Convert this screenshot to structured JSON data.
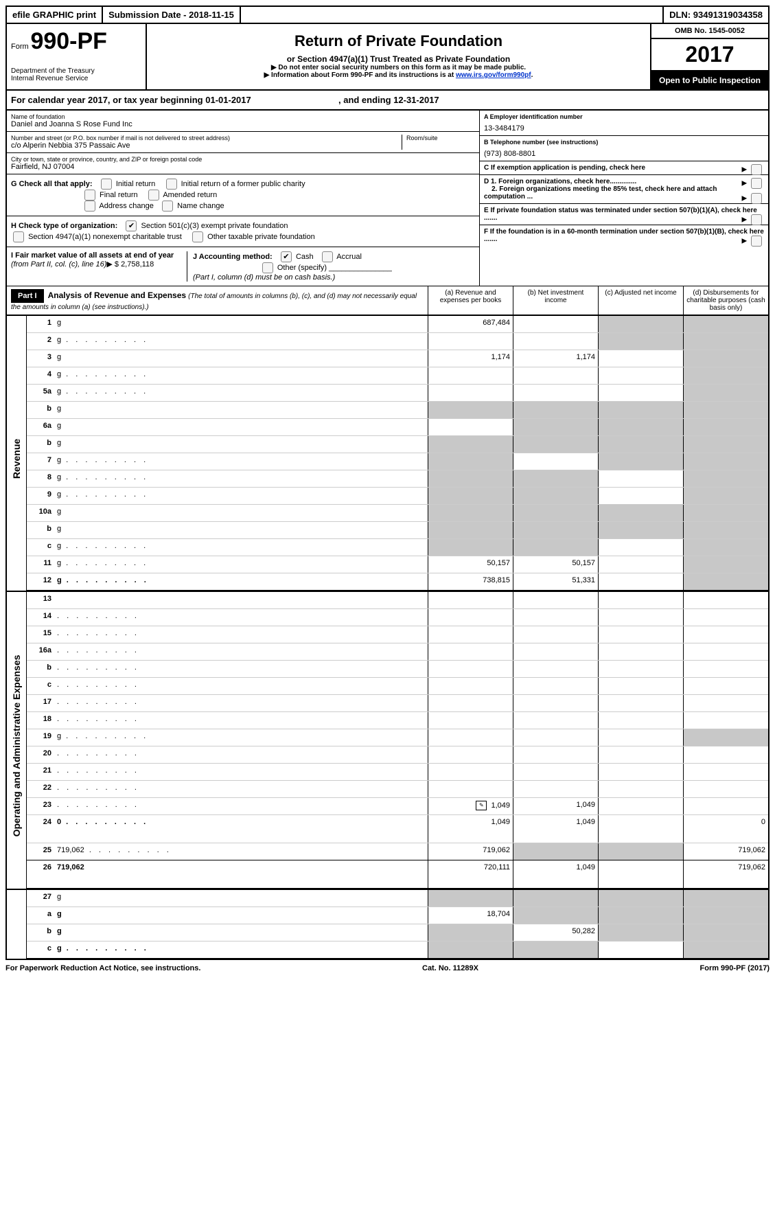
{
  "topbar": {
    "efile": "efile GRAPHIC print",
    "submission_label": "Submission Date - ",
    "submission_date": "2018-11-15",
    "dln_label": "DLN: ",
    "dln": "93491319034358"
  },
  "header": {
    "form_prefix": "Form",
    "form_number": "990-PF",
    "dept1": "Department of the Treasury",
    "dept2": "Internal Revenue Service",
    "title": "Return of Private Foundation",
    "subtitle": "or Section 4947(a)(1) Trust Treated as Private Foundation",
    "note1": "▶ Do not enter social security numbers on this form as it may be made public.",
    "note2_prefix": "▶ Information about Form 990-PF and its instructions is at ",
    "note2_link": "www.irs.gov/form990pf",
    "omb": "OMB No. 1545-0052",
    "year": "2017",
    "open": "Open to Public Inspection"
  },
  "yearline": {
    "prefix": "For calendar year 2017, or tax year beginning ",
    "begin": "01-01-2017",
    "mid": " , and ending ",
    "end": "12-31-2017"
  },
  "entity": {
    "name_lbl": "Name of foundation",
    "name": "Daniel and Joanna S Rose Fund Inc",
    "addr_lbl": "Number and street (or P.O. box number if mail is not delivered to street address)",
    "room_lbl": "Room/suite",
    "addr": "c/o Alperin Nebbia 375 Passaic Ave",
    "city_lbl": "City or town, state or province, country, and ZIP or foreign postal code",
    "city": "Fairfield, NJ  07004",
    "a_lbl": "A Employer identification number",
    "a_val": "13-3484179",
    "b_lbl": "B Telephone number (see instructions)",
    "b_val": "(973) 808-8801",
    "c_lbl": "C If exemption application is pending, check here",
    "d1": "D 1. Foreign organizations, check here..............",
    "d2": "2. Foreign organizations meeting the 85% test, check here and attach computation ...",
    "e_lbl": "E  If private foundation status was terminated under section 507(b)(1)(A), check here .......",
    "f_lbl": "F  If the foundation is in a 60-month termination under section 507(b)(1)(B), check here .......",
    "g_lbl": "G Check all that apply:",
    "g_opts": [
      "Initial return",
      "Initial return of a former public charity",
      "Final return",
      "Amended return",
      "Address change",
      "Name change"
    ],
    "h_lbl": "H Check type of organization:",
    "h_opt1": "Section 501(c)(3) exempt private foundation",
    "h_opt2": "Section 4947(a)(1) nonexempt charitable trust",
    "h_opt3": "Other taxable private foundation",
    "i_lbl": "I Fair market value of all assets at end of year ",
    "i_paren": "(from Part II, col. (c), line 16)",
    "i_val": "$  2,758,118",
    "j_lbl": "J Accounting method:",
    "j_cash": "Cash",
    "j_accrual": "Accrual",
    "j_other": "Other (specify)",
    "j_note": "(Part I, column (d) must be on cash basis.)"
  },
  "part1": {
    "label": "Part I",
    "title": "Analysis of Revenue and Expenses",
    "paren": " (The total of amounts in columns (b), (c), and (d) may not necessarily equal the amounts in column (a) (see instructions).)",
    "cols": {
      "a": "(a)   Revenue and expenses per books",
      "b": "(b)  Net investment income",
      "c": "(c)  Adjusted net income",
      "d": "(d)  Disbursements for charitable purposes (cash basis only)"
    }
  },
  "sections": {
    "revenue": "Revenue",
    "expenses": "Operating and Administrative Expenses"
  },
  "rows": [
    {
      "n": "1",
      "d": "g",
      "a": "687,484",
      "b": "",
      "c": "g"
    },
    {
      "n": "2",
      "d": "g",
      "dots": true,
      "a": "",
      "b": "",
      "c": "g",
      "nocells": true
    },
    {
      "n": "3",
      "d": "g",
      "a": "1,174",
      "b": "1,174",
      "c": ""
    },
    {
      "n": "4",
      "d": "g",
      "dots": true,
      "a": "",
      "b": "",
      "c": ""
    },
    {
      "n": "5a",
      "d": "g",
      "dots": true,
      "a": "",
      "b": "",
      "c": ""
    },
    {
      "n": "b",
      "d": "g",
      "a": "g",
      "b": "g",
      "c": "g"
    },
    {
      "n": "6a",
      "d": "g",
      "a": "",
      "b": "g",
      "c": "g"
    },
    {
      "n": "b",
      "d": "g",
      "a": "g",
      "b": "g",
      "c": "g"
    },
    {
      "n": "7",
      "d": "g",
      "dots": true,
      "a": "g",
      "b": "",
      "c": "g"
    },
    {
      "n": "8",
      "d": "g",
      "dots": true,
      "a": "g",
      "b": "g",
      "c": ""
    },
    {
      "n": "9",
      "d": "g",
      "dots": true,
      "a": "g",
      "b": "g",
      "c": ""
    },
    {
      "n": "10a",
      "d": "g",
      "a": "g",
      "b": "g",
      "c": "g"
    },
    {
      "n": "b",
      "d": "g",
      "a": "g",
      "b": "g",
      "c": "g"
    },
    {
      "n": "c",
      "d": "g",
      "dots": true,
      "a": "g",
      "b": "g",
      "c": ""
    },
    {
      "n": "11",
      "d": "g",
      "dots": true,
      "a": "50,157",
      "b": "50,157",
      "c": ""
    },
    {
      "n": "12",
      "d": "g",
      "b2": true,
      "dots": true,
      "a": "738,815",
      "b": "51,331",
      "c": "",
      "hr": true
    }
  ],
  "rows2": [
    {
      "n": "13",
      "d": "",
      "a": "",
      "b": "",
      "c": ""
    },
    {
      "n": "14",
      "d": "",
      "dots": true,
      "a": "",
      "b": "",
      "c": ""
    },
    {
      "n": "15",
      "d": "",
      "dots": true,
      "a": "",
      "b": "",
      "c": ""
    },
    {
      "n": "16a",
      "d": "",
      "dots": true,
      "a": "",
      "b": "",
      "c": ""
    },
    {
      "n": "b",
      "d": "",
      "dots": true,
      "a": "",
      "b": "",
      "c": ""
    },
    {
      "n": "c",
      "d": "",
      "dots": true,
      "a": "",
      "b": "",
      "c": ""
    },
    {
      "n": "17",
      "d": "",
      "dots": true,
      "a": "",
      "b": "",
      "c": ""
    },
    {
      "n": "18",
      "d": "",
      "dots": true,
      "a": "",
      "b": "",
      "c": ""
    },
    {
      "n": "19",
      "d": "g",
      "dots": true,
      "a": "",
      "b": "",
      "c": ""
    },
    {
      "n": "20",
      "d": "",
      "dots": true,
      "a": "",
      "b": "",
      "c": ""
    },
    {
      "n": "21",
      "d": "",
      "dots": true,
      "a": "",
      "b": "",
      "c": ""
    },
    {
      "n": "22",
      "d": "",
      "dots": true,
      "a": "",
      "b": "",
      "c": ""
    },
    {
      "n": "23",
      "d": "",
      "dots": true,
      "a": "1,049",
      "b": "1,049",
      "c": "",
      "icon": true
    },
    {
      "n": "24",
      "d": "0",
      "b2": true,
      "dots": true,
      "a": "1,049",
      "b": "1,049",
      "c": "",
      "tall": true
    },
    {
      "n": "25",
      "d": "719,062",
      "dots": true,
      "a": "719,062",
      "b": "g",
      "c": "g",
      "hr": true
    },
    {
      "n": "26",
      "d": "719,062",
      "b2": true,
      "a": "720,111",
      "b": "1,049",
      "c": "",
      "hr": true,
      "tall": true
    }
  ],
  "rows3": [
    {
      "n": "27",
      "d": "g",
      "a": "g",
      "b": "g",
      "c": "g"
    },
    {
      "n": "a",
      "d": "g",
      "b2": true,
      "a": "18,704",
      "b": "g",
      "c": "g"
    },
    {
      "n": "b",
      "d": "g",
      "b2": true,
      "a": "g",
      "b": "50,282",
      "c": "g"
    },
    {
      "n": "c",
      "d": "g",
      "b2": true,
      "dots": true,
      "a": "g",
      "b": "g",
      "c": "",
      "hr": true
    }
  ],
  "footer": {
    "left": "For Paperwork Reduction Act Notice, see instructions.",
    "mid": "Cat. No. 11289X",
    "right": "Form 990-PF (2017)"
  }
}
